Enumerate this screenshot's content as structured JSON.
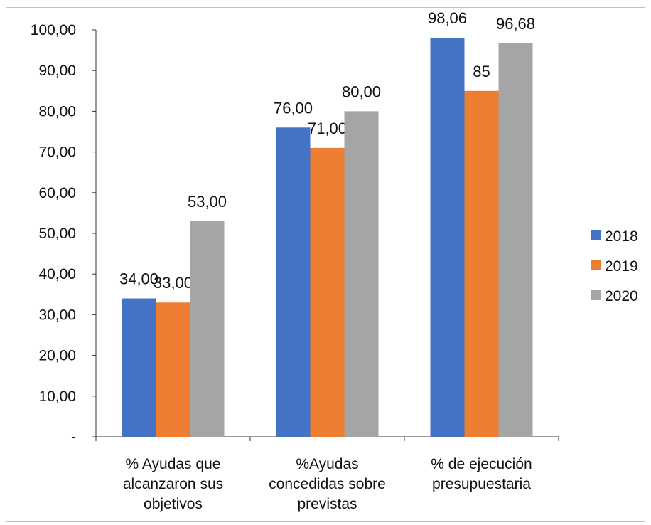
{
  "chart_data": {
    "type": "bar",
    "categories": [
      [
        "% Ayudas que",
        "alcanzaron sus",
        "objetivos"
      ],
      [
        "%Ayudas",
        "concedidas sobre",
        "previstas"
      ],
      [
        "% de ejecución",
        "presupuestaria"
      ]
    ],
    "series": [
      {
        "name": "2018",
        "color": "#4472c4",
        "values": [
          34.0,
          76.0,
          98.06
        ],
        "labels": [
          "34,00",
          "76,00",
          "98,06"
        ]
      },
      {
        "name": "2019",
        "color": "#ed7d31",
        "values": [
          33.0,
          71.0,
          85.0
        ],
        "labels": [
          "33,00",
          "71,00",
          "85"
        ]
      },
      {
        "name": "2020",
        "color": "#a5a5a5",
        "values": [
          53.0,
          80.0,
          96.68
        ],
        "labels": [
          "53,00",
          "80,00",
          "96,68"
        ]
      }
    ],
    "yticks": [
      0,
      10,
      20,
      30,
      40,
      50,
      60,
      70,
      80,
      90,
      100
    ],
    "ytick_labels": [
      "-",
      "10,00",
      "20,00",
      "30,00",
      "40,00",
      "50,00",
      "60,00",
      "70,00",
      "80,00",
      "90,00",
      "100,00"
    ],
    "ylim": [
      0,
      100
    ],
    "grid": false,
    "legend": "right",
    "title": "",
    "xlabel": "",
    "ylabel": ""
  }
}
